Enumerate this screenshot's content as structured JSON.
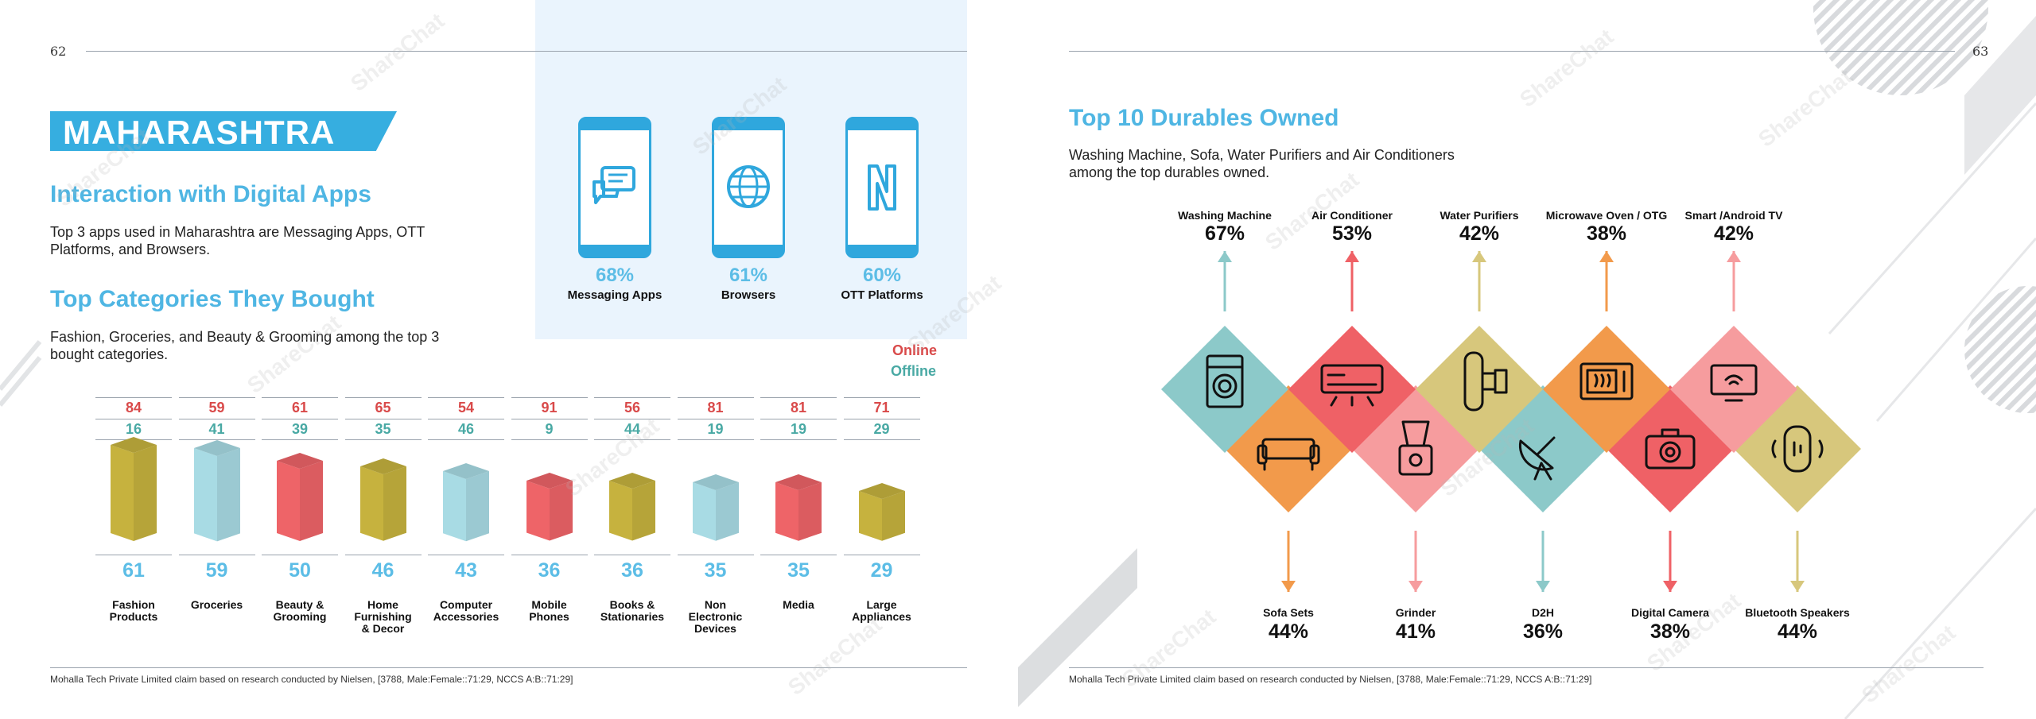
{
  "left": {
    "page_number": "62",
    "state": "MAHARASHTRA",
    "apps_heading": "Interaction with Digital Apps",
    "apps_text": "Top 3 apps used in Maharashtra are Messaging Apps, OTT Platforms, and Browsers.",
    "apps": [
      {
        "icon": "chat-bubbles-icon",
        "pct": "68%",
        "label": "Messaging Apps"
      },
      {
        "icon": "globe-icon",
        "pct": "61%",
        "label": "Browsers"
      },
      {
        "icon": "netflix-n-icon",
        "pct": "60%",
        "label": "OTT Platforms"
      }
    ],
    "categories_heading": "Top Categories They Bought",
    "categories_text": "Fashion, Groceries, and Beauty & Grooming among the top 3 bought categories.",
    "legend": {
      "online": "Online",
      "offline": "Offline"
    },
    "categories": [
      {
        "label": "Fashion\nProducts",
        "online": "84",
        "offline": "16",
        "total": "61",
        "color": "#c6b23e"
      },
      {
        "label": "Groceries",
        "online": "59",
        "offline": "41",
        "total": "59",
        "color": "#a8dbe4"
      },
      {
        "label": "Beauty &\nGrooming",
        "online": "61",
        "offline": "39",
        "total": "50",
        "color": "#ee6468"
      },
      {
        "label": "Home\nFurnishing\n& Decor",
        "online": "65",
        "offline": "35",
        "total": "46",
        "color": "#c6b23e"
      },
      {
        "label": "Computer\nAccessories",
        "online": "54",
        "offline": "46",
        "total": "43",
        "color": "#a8dbe4"
      },
      {
        "label": "Mobile\nPhones",
        "online": "91",
        "offline": "9",
        "total": "36",
        "color": "#ee6468"
      },
      {
        "label": "Books &\nStationaries",
        "online": "56",
        "offline": "44",
        "total": "36",
        "color": "#c6b23e"
      },
      {
        "label": "Non\nElectronic\nDevices",
        "online": "81",
        "offline": "19",
        "total": "35",
        "color": "#a8dbe4"
      },
      {
        "label": "Media",
        "online": "81",
        "offline": "19",
        "total": "35",
        "color": "#ee6468"
      },
      {
        "label": "Large\nAppliances",
        "online": "71",
        "offline": "29",
        "total": "29",
        "color": "#c6b23e"
      }
    ],
    "footer": "Mohalla Tech Private Limited claim based on research conducted by Nielsen, [3788, Male:Female::71:29, NCCS A:B::71:29]"
  },
  "right": {
    "page_number": "63",
    "heading": "Top 10 Durables Owned",
    "text": "Washing Machine, Sofa, Water Purifiers and Air Conditioners among the top durables owned.",
    "top_items": [
      {
        "label": "Washing Machine",
        "pct": "67%",
        "icon": "washing-machine-icon",
        "color": "#8cc9c9"
      },
      {
        "label": "Air Conditioner",
        "pct": "53%",
        "icon": "air-conditioner-icon",
        "color": "#ef6166"
      },
      {
        "label": "Water Purifiers",
        "pct": "42%",
        "icon": "water-purifier-icon",
        "color": "#d7c77c"
      },
      {
        "label": "Microwave Oven / OTG",
        "pct": "38%",
        "icon": "microwave-icon",
        "color": "#f29a4b"
      },
      {
        "label": "Smart /Android TV",
        "pct": "42%",
        "icon": "tv-icon",
        "color": "#f69c9e"
      }
    ],
    "bottom_items": [
      {
        "label": "Sofa Sets",
        "pct": "44%",
        "icon": "sofa-icon",
        "color": "#f29a4b"
      },
      {
        "label": "Grinder",
        "pct": "41%",
        "icon": "grinder-icon",
        "color": "#f69c9e"
      },
      {
        "label": "D2H",
        "pct": "36%",
        "icon": "satellite-dish-icon",
        "color": "#8cc9c9"
      },
      {
        "label": "Digital Camera",
        "pct": "38%",
        "icon": "camera-icon",
        "color": "#ef6166"
      },
      {
        "label": "Bluetooth Speakers",
        "pct": "44%",
        "icon": "speaker-icon",
        "color": "#d7c77c"
      }
    ],
    "footer": "Mohalla Tech Private Limited claim based on research conducted by Nielsen, [3788, Male:Female::71:29, NCCS A:B::71:29]"
  },
  "watermark": "ShareChat"
}
